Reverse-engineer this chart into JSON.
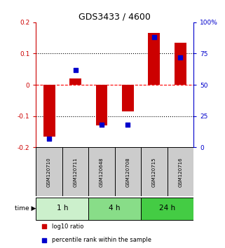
{
  "title": "GDS3433 / 4600",
  "samples": [
    "GSM120710",
    "GSM120711",
    "GSM120648",
    "GSM120708",
    "GSM120715",
    "GSM120716"
  ],
  "log10_ratio": [
    -0.165,
    0.02,
    -0.13,
    -0.085,
    0.165,
    0.135
  ],
  "percentile_rank": [
    7,
    62,
    18,
    18,
    88,
    72
  ],
  "ylim_left": [
    -0.2,
    0.2
  ],
  "ylim_right": [
    0,
    100
  ],
  "yticks_left": [
    -0.2,
    -0.1,
    0.0,
    0.1,
    0.2
  ],
  "yticks_right": [
    0,
    25,
    50,
    75,
    100
  ],
  "ytick_labels_right": [
    "0",
    "25",
    "50",
    "75",
    "100%"
  ],
  "time_groups": [
    {
      "label": "1 h",
      "start": 0,
      "end": 2,
      "color": "#ccf0cc"
    },
    {
      "label": "4 h",
      "start": 2,
      "end": 4,
      "color": "#88dd88"
    },
    {
      "label": "24 h",
      "start": 4,
      "end": 6,
      "color": "#44cc44"
    }
  ],
  "bar_color": "#cc0000",
  "point_color": "#0000cc",
  "bar_width": 0.45,
  "point_size": 18,
  "sample_box_color": "#cccccc",
  "legend_red_label": "log10 ratio",
  "legend_blue_label": "percentile rank within the sample",
  "left_axis_color": "#cc0000",
  "right_axis_color": "#0000cc",
  "bg_color": "#ffffff"
}
